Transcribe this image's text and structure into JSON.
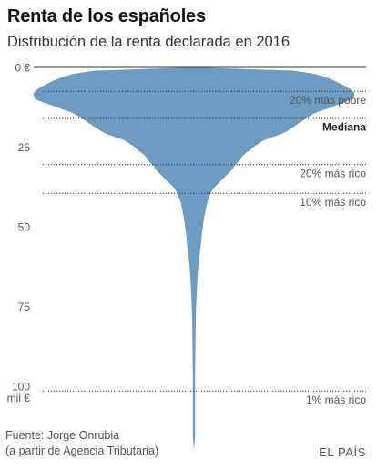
{
  "title": "Renta de los españoles",
  "subtitle": "Distribución de la renta declarada en 2016",
  "source_line1": "Fuente: Jorge Onrubia",
  "source_line2": "(a partir de Agencia Tributaria)",
  "brand": "EL PAÍS",
  "colors": {
    "fill": "#6d9cc2",
    "text": "#555555",
    "rule": "#333333"
  },
  "chart_data": {
    "type": "area",
    "shape": "violin",
    "yaxis": {
      "min": 0,
      "max": 120,
      "ticks": [
        0,
        25,
        50,
        75,
        100
      ],
      "tick_labels": [
        "0 €",
        "25",
        "50",
        "75",
        "100"
      ],
      "unit_label": "mil €",
      "direction": "down"
    },
    "xlabel": "",
    "ylabel": "",
    "density_profile": [
      [
        0,
        0.0
      ],
      [
        1,
        0.62
      ],
      [
        2,
        0.75
      ],
      [
        3,
        0.82
      ],
      [
        4,
        0.87
      ],
      [
        5,
        0.91
      ],
      [
        6,
        0.95
      ],
      [
        7,
        0.98
      ],
      [
        8,
        1.0
      ],
      [
        9,
        1.0
      ],
      [
        10,
        0.99
      ],
      [
        11,
        0.94
      ],
      [
        12,
        0.88
      ],
      [
        13,
        0.83
      ],
      [
        14,
        0.77
      ],
      [
        15,
        0.73
      ],
      [
        16,
        0.7
      ],
      [
        17,
        0.67
      ],
      [
        18,
        0.64
      ],
      [
        19,
        0.61
      ],
      [
        20,
        0.58
      ],
      [
        21,
        0.54
      ],
      [
        22,
        0.48
      ],
      [
        23,
        0.43
      ],
      [
        24,
        0.4
      ],
      [
        25,
        0.37
      ],
      [
        26,
        0.35
      ],
      [
        27,
        0.32
      ],
      [
        28,
        0.3
      ],
      [
        29,
        0.29
      ],
      [
        30,
        0.27
      ],
      [
        31,
        0.25
      ],
      [
        32,
        0.24
      ],
      [
        33,
        0.22
      ],
      [
        34,
        0.2
      ],
      [
        35,
        0.18
      ],
      [
        36,
        0.16
      ],
      [
        37,
        0.14
      ],
      [
        38,
        0.12
      ],
      [
        39,
        0.11
      ],
      [
        40,
        0.1
      ],
      [
        42,
        0.085
      ],
      [
        44,
        0.075
      ],
      [
        46,
        0.068
      ],
      [
        48,
        0.06
      ],
      [
        50,
        0.055
      ],
      [
        52,
        0.05
      ],
      [
        54,
        0.046
      ],
      [
        56,
        0.042
      ],
      [
        58,
        0.038
      ],
      [
        60,
        0.032
      ],
      [
        62,
        0.028
      ],
      [
        64,
        0.025
      ],
      [
        66,
        0.022
      ],
      [
        68,
        0.02
      ],
      [
        70,
        0.018
      ],
      [
        72,
        0.016
      ],
      [
        74,
        0.014
      ],
      [
        76,
        0.013
      ],
      [
        78,
        0.012
      ],
      [
        80,
        0.011
      ],
      [
        84,
        0.01
      ],
      [
        88,
        0.009
      ],
      [
        92,
        0.008
      ],
      [
        96,
        0.007
      ],
      [
        100,
        0.007
      ],
      [
        104,
        0.006
      ],
      [
        108,
        0.005
      ],
      [
        112,
        0.004
      ],
      [
        116,
        0.003
      ],
      [
        120,
        0.0
      ]
    ],
    "annotations": [
      {
        "label": "20% más pobre",
        "value": 7.5,
        "bold": false
      },
      {
        "label": "Mediana",
        "value": 16,
        "bold": true
      },
      {
        "label": "20% más rico",
        "value": 30.5,
        "bold": false
      },
      {
        "label": "10% más rico",
        "value": 39.5,
        "bold": false
      },
      {
        "label": "1% más rico",
        "value": 101.5,
        "bold": false
      }
    ]
  }
}
